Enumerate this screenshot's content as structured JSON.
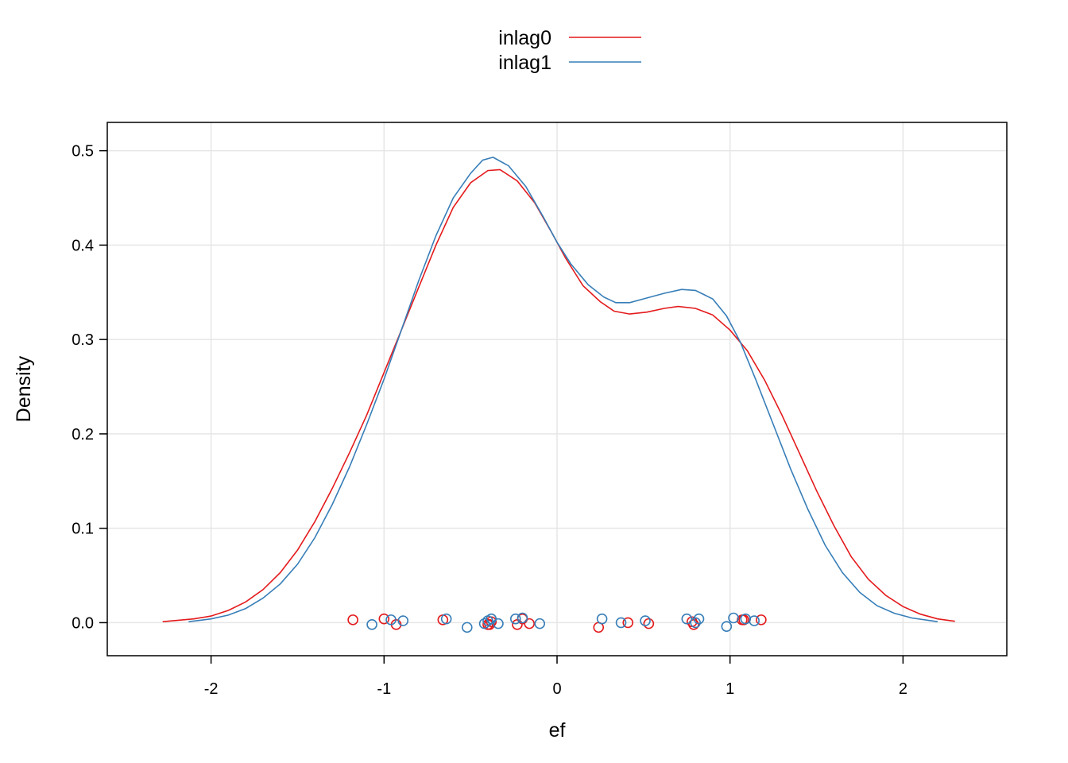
{
  "chart_data": {
    "type": "line",
    "title": "",
    "xlabel": "ef",
    "ylabel": "Density",
    "xlim": [
      -2.6,
      2.6
    ],
    "ylim": [
      -0.035,
      0.53
    ],
    "xticks": [
      -2,
      -1,
      0,
      1,
      2
    ],
    "xtick_labels": [
      "-2",
      "-1",
      "0",
      "1",
      "2"
    ],
    "yticks": [
      0.0,
      0.1,
      0.2,
      0.3,
      0.4,
      0.5
    ],
    "ytick_labels": [
      "0.0",
      "0.1",
      "0.2",
      "0.3",
      "0.4",
      "0.5"
    ],
    "grid": true,
    "legend": {
      "position": "top-center",
      "entries": [
        "inlag0",
        "inlag1"
      ]
    },
    "series": [
      {
        "name": "inlag0",
        "color": "#e41a1c",
        "x": [
          -2.28,
          -2.1,
          -2.0,
          -1.9,
          -1.8,
          -1.7,
          -1.6,
          -1.5,
          -1.4,
          -1.3,
          -1.2,
          -1.1,
          -1.0,
          -0.9,
          -0.8,
          -0.7,
          -0.6,
          -0.5,
          -0.4,
          -0.33,
          -0.23,
          -0.13,
          -0.03,
          0.05,
          0.15,
          0.25,
          0.33,
          0.42,
          0.52,
          0.62,
          0.7,
          0.8,
          0.9,
          1.0,
          1.1,
          1.2,
          1.3,
          1.4,
          1.5,
          1.6,
          1.7,
          1.8,
          1.9,
          2.0,
          2.1,
          2.2,
          2.3
        ],
        "y": [
          0.001,
          0.004,
          0.007,
          0.013,
          0.022,
          0.035,
          0.053,
          0.077,
          0.107,
          0.142,
          0.18,
          0.22,
          0.265,
          0.31,
          0.355,
          0.4,
          0.44,
          0.466,
          0.479,
          0.48,
          0.468,
          0.445,
          0.413,
          0.386,
          0.357,
          0.34,
          0.33,
          0.327,
          0.329,
          0.333,
          0.335,
          0.333,
          0.326,
          0.31,
          0.288,
          0.257,
          0.22,
          0.18,
          0.14,
          0.103,
          0.07,
          0.046,
          0.029,
          0.017,
          0.009,
          0.004,
          0.0015
        ]
      },
      {
        "name": "inlag1",
        "color": "#377eb8",
        "x": [
          -2.13,
          -2.0,
          -1.9,
          -1.8,
          -1.7,
          -1.6,
          -1.5,
          -1.4,
          -1.3,
          -1.2,
          -1.1,
          -1.0,
          -0.9,
          -0.8,
          -0.7,
          -0.6,
          -0.5,
          -0.43,
          -0.37,
          -0.28,
          -0.18,
          -0.08,
          0.0,
          0.08,
          0.18,
          0.27,
          0.34,
          0.42,
          0.52,
          0.62,
          0.72,
          0.8,
          0.9,
          0.98,
          1.06,
          1.15,
          1.25,
          1.35,
          1.45,
          1.55,
          1.65,
          1.75,
          1.85,
          1.95,
          2.05,
          2.2
        ],
        "y": [
          0.001,
          0.004,
          0.008,
          0.015,
          0.026,
          0.041,
          0.062,
          0.09,
          0.125,
          0.165,
          0.21,
          0.258,
          0.31,
          0.362,
          0.41,
          0.45,
          0.476,
          0.49,
          0.493,
          0.484,
          0.462,
          0.43,
          0.403,
          0.38,
          0.358,
          0.345,
          0.339,
          0.339,
          0.344,
          0.349,
          0.353,
          0.352,
          0.343,
          0.325,
          0.297,
          0.257,
          0.21,
          0.163,
          0.12,
          0.082,
          0.053,
          0.032,
          0.018,
          0.01,
          0.005,
          0.001
        ]
      }
    ],
    "rug": [
      {
        "name": "inlag0",
        "color": "#e41a1c",
        "points": [
          [
            -1.18,
            0.003
          ],
          [
            -1.0,
            0.004
          ],
          [
            -0.93,
            -0.002
          ],
          [
            -0.66,
            0.003
          ],
          [
            -0.4,
            -0.002
          ],
          [
            -0.39,
            -0.002
          ],
          [
            -0.38,
            0.001
          ],
          [
            -0.23,
            -0.002
          ],
          [
            -0.2,
            0.004
          ],
          [
            -0.16,
            -0.001
          ],
          [
            0.24,
            -0.005
          ],
          [
            0.41,
            0.0
          ],
          [
            0.53,
            -0.001
          ],
          [
            0.79,
            -0.002
          ],
          [
            0.78,
            0.001
          ],
          [
            1.07,
            0.003
          ],
          [
            1.08,
            0.003
          ],
          [
            1.18,
            0.003
          ]
        ]
      },
      {
        "name": "inlag1",
        "color": "#377eb8",
        "points": [
          [
            -1.07,
            -0.002
          ],
          [
            -0.96,
            0.003
          ],
          [
            -0.89,
            0.002
          ],
          [
            -0.64,
            0.004
          ],
          [
            -0.52,
            -0.005
          ],
          [
            -0.42,
            -0.001
          ],
          [
            -0.4,
            0.002
          ],
          [
            -0.38,
            0.004
          ],
          [
            -0.34,
            -0.001
          ],
          [
            -0.24,
            0.004
          ],
          [
            -0.2,
            0.005
          ],
          [
            -0.1,
            -0.001
          ],
          [
            0.26,
            0.004
          ],
          [
            0.37,
            0.0
          ],
          [
            0.51,
            0.002
          ],
          [
            0.75,
            0.004
          ],
          [
            0.8,
            0.0
          ],
          [
            0.82,
            0.004
          ],
          [
            0.98,
            -0.004
          ],
          [
            1.02,
            0.005
          ],
          [
            1.09,
            0.004
          ],
          [
            1.14,
            0.002
          ]
        ]
      }
    ]
  }
}
